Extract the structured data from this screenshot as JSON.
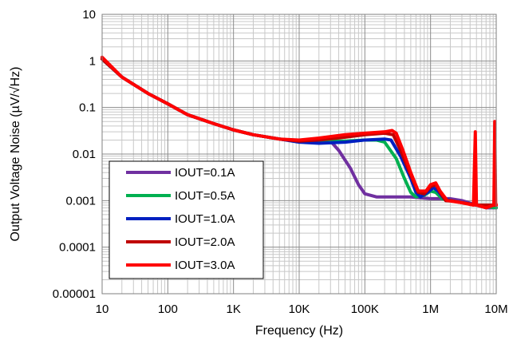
{
  "chart_data": {
    "type": "line",
    "title": "",
    "xlabel": "Frequency (Hz)",
    "ylabel": "Output Voltage Noise (µV/√Hz)",
    "x_scale": "log",
    "y_scale": "log",
    "xlim": [
      10,
      10000000
    ],
    "ylim": [
      1e-05,
      10
    ],
    "grid": true,
    "legend_position": "bottom-left",
    "x_ticks": [
      {
        "value": 10,
        "label": "10"
      },
      {
        "value": 100,
        "label": "100"
      },
      {
        "value": 1000,
        "label": "1K"
      },
      {
        "value": 10000,
        "label": "10K"
      },
      {
        "value": 100000,
        "label": "100K"
      },
      {
        "value": 1000000,
        "label": "1M"
      },
      {
        "value": 10000000,
        "label": "10M"
      }
    ],
    "y_ticks": [
      {
        "value": 10,
        "label": "10"
      },
      {
        "value": 1,
        "label": "1"
      },
      {
        "value": 0.1,
        "label": "0.1"
      },
      {
        "value": 0.01,
        "label": "0.01"
      },
      {
        "value": 0.001,
        "label": "0.001"
      },
      {
        "value": 0.0001,
        "label": "0.0001"
      },
      {
        "value": 1e-05,
        "label": "0.00001"
      }
    ],
    "series": [
      {
        "name": "IOUT=0.1A",
        "color": "#7030a0",
        "points": [
          [
            10,
            1.1
          ],
          [
            20,
            0.45
          ],
          [
            50,
            0.2
          ],
          [
            100,
            0.12
          ],
          [
            200,
            0.07
          ],
          [
            500,
            0.045
          ],
          [
            1000,
            0.033
          ],
          [
            2000,
            0.026
          ],
          [
            5000,
            0.021
          ],
          [
            10000,
            0.019
          ],
          [
            20000,
            0.02
          ],
          [
            30000,
            0.019
          ],
          [
            40000,
            0.012
          ],
          [
            60000,
            0.005
          ],
          [
            80000,
            0.0022
          ],
          [
            100000,
            0.0014
          ],
          [
            150000,
            0.0012
          ],
          [
            200000,
            0.0012
          ],
          [
            300000,
            0.0012
          ],
          [
            500000,
            0.0012
          ],
          [
            1000000,
            0.0011
          ],
          [
            2000000,
            0.0011
          ],
          [
            3000000,
            0.001
          ],
          [
            5000000,
            0.0008
          ],
          [
            7000000,
            0.0007
          ],
          [
            10000000,
            0.0007
          ]
        ]
      },
      {
        "name": "IOUT=0.5A",
        "color": "#00b050",
        "points": [
          [
            10,
            1.1
          ],
          [
            20,
            0.45
          ],
          [
            50,
            0.2
          ],
          [
            100,
            0.12
          ],
          [
            200,
            0.07
          ],
          [
            500,
            0.045
          ],
          [
            1000,
            0.033
          ],
          [
            2000,
            0.026
          ],
          [
            5000,
            0.021
          ],
          [
            10000,
            0.019
          ],
          [
            20000,
            0.019
          ],
          [
            50000,
            0.019
          ],
          [
            100000,
            0.02
          ],
          [
            150000,
            0.02
          ],
          [
            200000,
            0.018
          ],
          [
            300000,
            0.008
          ],
          [
            400000,
            0.003
          ],
          [
            500000,
            0.0015
          ],
          [
            600000,
            0.0012
          ],
          [
            800000,
            0.0013
          ],
          [
            1000000,
            0.0016
          ],
          [
            1200000,
            0.0015
          ],
          [
            1500000,
            0.0011
          ],
          [
            2000000,
            0.001
          ],
          [
            5000000,
            0.0008
          ],
          [
            10000000,
            0.0007
          ]
        ]
      },
      {
        "name": "IOUT=1.0A",
        "color": "#0020c0",
        "points": [
          [
            10,
            1.1
          ],
          [
            20,
            0.45
          ],
          [
            50,
            0.2
          ],
          [
            100,
            0.12
          ],
          [
            200,
            0.07
          ],
          [
            500,
            0.045
          ],
          [
            1000,
            0.033
          ],
          [
            2000,
            0.026
          ],
          [
            5000,
            0.021
          ],
          [
            10000,
            0.018
          ],
          [
            20000,
            0.017
          ],
          [
            50000,
            0.018
          ],
          [
            100000,
            0.02
          ],
          [
            200000,
            0.021
          ],
          [
            250000,
            0.02
          ],
          [
            350000,
            0.009
          ],
          [
            500000,
            0.003
          ],
          [
            600000,
            0.0015
          ],
          [
            700000,
            0.0012
          ],
          [
            900000,
            0.0015
          ],
          [
            1100000,
            0.0019
          ],
          [
            1300000,
            0.0016
          ],
          [
            1600000,
            0.0011
          ],
          [
            2000000,
            0.001
          ],
          [
            5000000,
            0.0008
          ],
          [
            10000000,
            0.0008
          ]
        ]
      },
      {
        "name": "IOUT=2.0A",
        "color": "#c00000",
        "points": [
          [
            10,
            1.1
          ],
          [
            20,
            0.45
          ],
          [
            50,
            0.2
          ],
          [
            100,
            0.12
          ],
          [
            200,
            0.07
          ],
          [
            500,
            0.045
          ],
          [
            1000,
            0.033
          ],
          [
            2000,
            0.026
          ],
          [
            5000,
            0.021
          ],
          [
            10000,
            0.019
          ],
          [
            20000,
            0.02
          ],
          [
            50000,
            0.023
          ],
          [
            100000,
            0.026
          ],
          [
            200000,
            0.028
          ],
          [
            270000,
            0.026
          ],
          [
            350000,
            0.012
          ],
          [
            500000,
            0.0035
          ],
          [
            650000,
            0.0015
          ],
          [
            800000,
            0.0014
          ],
          [
            1000000,
            0.002
          ],
          [
            1200000,
            0.0022
          ],
          [
            1400000,
            0.0015
          ],
          [
            1700000,
            0.001
          ],
          [
            2000000,
            0.001
          ],
          [
            5000000,
            0.0008
          ],
          [
            10000000,
            0.0008
          ]
        ]
      },
      {
        "name": "IOUT=3.0A",
        "color": "#ff0000",
        "points": [
          [
            10,
            1.2
          ],
          [
            20,
            0.45
          ],
          [
            50,
            0.2
          ],
          [
            100,
            0.12
          ],
          [
            200,
            0.07
          ],
          [
            500,
            0.045
          ],
          [
            1000,
            0.033
          ],
          [
            2000,
            0.026
          ],
          [
            5000,
            0.021
          ],
          [
            10000,
            0.02
          ],
          [
            20000,
            0.022
          ],
          [
            50000,
            0.026
          ],
          [
            100000,
            0.028
          ],
          [
            200000,
            0.03
          ],
          [
            260000,
            0.032
          ],
          [
            300000,
            0.028
          ],
          [
            380000,
            0.012
          ],
          [
            500000,
            0.004
          ],
          [
            650000,
            0.0016
          ],
          [
            850000,
            0.0016
          ],
          [
            1000000,
            0.0022
          ],
          [
            1200000,
            0.0024
          ],
          [
            1400000,
            0.0016
          ],
          [
            1800000,
            0.001
          ],
          [
            3000000,
            0.0009
          ],
          [
            4500000,
            0.0008
          ],
          [
            4800000,
            0.03
          ],
          [
            5000000,
            0.0008
          ],
          [
            7000000,
            0.0007
          ],
          [
            9200000,
            0.0008
          ],
          [
            9500000,
            0.05
          ],
          [
            9800000,
            0.0009
          ],
          [
            10000000,
            0.0008
          ]
        ]
      }
    ]
  }
}
